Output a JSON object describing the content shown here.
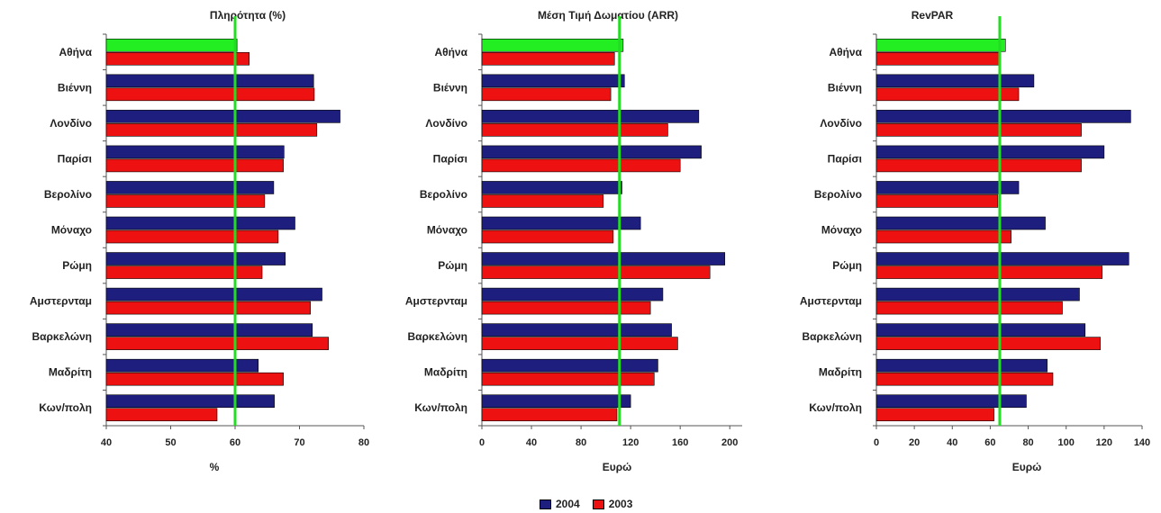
{
  "legend": [
    {
      "name": "2004",
      "color": "#1e1e7e"
    },
    {
      "name": "2003",
      "color": "#ee1111"
    }
  ],
  "colors": {
    "athens_highlight": "#22ee22",
    "reference_line": "#22dd22",
    "bar_outline": "#000000"
  },
  "chart_data": [
    {
      "type": "bar",
      "orientation": "horizontal",
      "title": "Πληρότητα (%)",
      "xlabel": "%",
      "ylabel": "",
      "xlim": [
        40,
        80
      ],
      "ticks": [
        40,
        50,
        60,
        70,
        80
      ],
      "reference_line": 60,
      "categories": [
        "Αθήνα",
        "Βιέννη",
        "Λονδίνο",
        "Παρίσι",
        "Βερολίνο",
        "Μόναχο",
        "Ρώμη",
        "Αμστερνταμ",
        "Βαρκελώνη",
        "Μαδρίτη",
        "Κων/πολη"
      ],
      "series": [
        {
          "name": "2004",
          "values": [
            60.3,
            72.2,
            76.3,
            67.6,
            66.0,
            69.3,
            67.8,
            73.5,
            72.0,
            63.6,
            66.1
          ]
        },
        {
          "name": "2003",
          "values": [
            62.2,
            72.3,
            72.7,
            67.5,
            64.6,
            66.7,
            64.2,
            71.7,
            74.5,
            67.5,
            57.2
          ]
        }
      ]
    },
    {
      "type": "bar",
      "orientation": "horizontal",
      "title": "Μέση Τιμή Δωματίου (ARR)",
      "xlabel": "Ευρώ",
      "ylabel": "",
      "xlim": [
        0,
        210
      ],
      "ticks": [
        0,
        40,
        80,
        120,
        160,
        200
      ],
      "reference_line": 111,
      "categories": [
        "Αθήνα",
        "Βιέννη",
        "Λονδίνο",
        "Παρίσι",
        "Βερολίνο",
        "Μόναχο",
        "Ρώμη",
        "Αμστερνταμ",
        "Βαρκελώνη",
        "Μαδρίτη",
        "Κων/πολη"
      ],
      "series": [
        {
          "name": "2004",
          "values": [
            114,
            115,
            175,
            177,
            113,
            128,
            196,
            146,
            153,
            142,
            120
          ]
        },
        {
          "name": "2003",
          "values": [
            107,
            104,
            150,
            160,
            98,
            106,
            184,
            136,
            158,
            139,
            109
          ]
        }
      ]
    },
    {
      "type": "bar",
      "orientation": "horizontal",
      "title": "RevPAR",
      "xlabel": "Ευρώ",
      "ylabel": "",
      "xlim": [
        0,
        140
      ],
      "ticks": [
        0,
        20,
        40,
        60,
        80,
        100,
        120,
        140
      ],
      "reference_line": 65,
      "categories": [
        "Αθήνα",
        "Βιέννη",
        "Λονδίνο",
        "Παρίσι",
        "Βερολίνο",
        "Μόναχο",
        "Ρώμη",
        "Αμστερνταμ",
        "Βαρκελώνη",
        "Μαδρίτη",
        "Κων/πολη"
      ],
      "series": [
        {
          "name": "2004",
          "values": [
            68,
            83,
            134,
            120,
            75,
            89,
            133,
            107,
            110,
            90,
            79
          ]
        },
        {
          "name": "2003",
          "values": [
            65,
            75,
            108,
            108,
            64,
            71,
            119,
            98,
            118,
            93,
            62
          ]
        }
      ]
    }
  ]
}
